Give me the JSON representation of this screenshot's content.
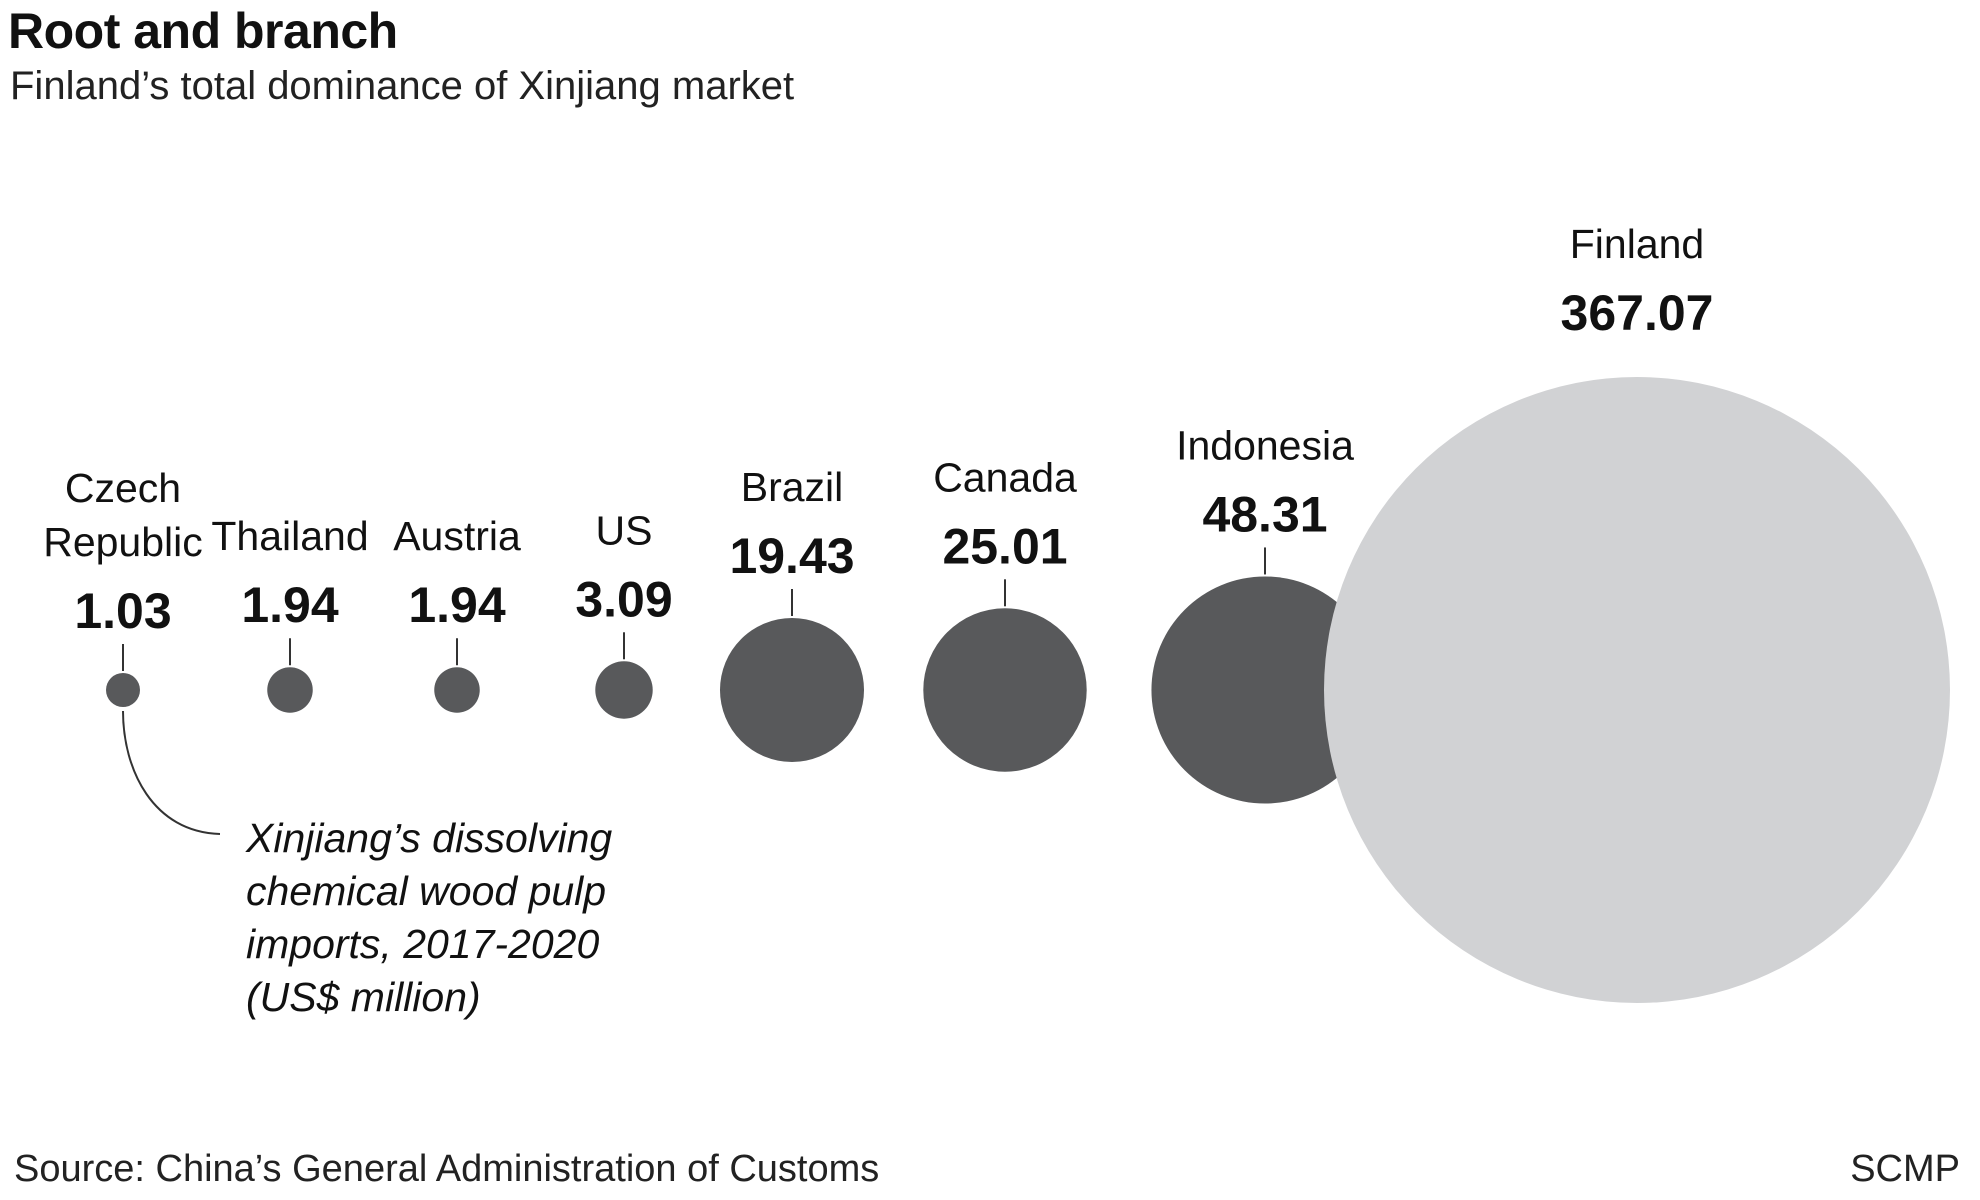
{
  "header": {
    "title": "Root and branch",
    "subtitle": "Finland’s total dominance of Xinjiang market"
  },
  "footer": {
    "source": "Source: China’s General Administration of Customs",
    "credit": "SCMP"
  },
  "colors": {
    "bubble_dark": "#58595b",
    "bubble_light": "#d1d2d4",
    "text": "#111111",
    "leader_line": "#333333"
  },
  "chart_data": {
    "type": "bubble",
    "title": "Root and branch",
    "subtitle": "Finland’s total dominance of Xinjiang market",
    "unit_note": [
      "Xinjiang’s dissolving",
      "chemical wood pulp",
      "imports, 2017-2020",
      "(US$ million)"
    ],
    "categories": [
      "Czech Republic",
      "Thailand",
      "Austria",
      "US",
      "Brazil",
      "Canada",
      "Indonesia",
      "Finland"
    ],
    "values": [
      1.03,
      1.94,
      1.94,
      3.09,
      19.43,
      25.01,
      48.31,
      367.07
    ],
    "value_labels": [
      "1.03",
      "1.94",
      "1.94",
      "3.09",
      "19.43",
      "25.01",
      "48.31",
      "367.07"
    ],
    "label_lines": [
      [
        "Czech",
        "Republic"
      ],
      [
        "Thailand"
      ],
      [
        "Austria"
      ],
      [
        "US"
      ],
      [
        "Brazil"
      ],
      [
        "Canada"
      ],
      [
        "Indonesia"
      ],
      [
        "Finland"
      ]
    ],
    "highlight": "Finland",
    "legend": "none",
    "grid": false
  }
}
